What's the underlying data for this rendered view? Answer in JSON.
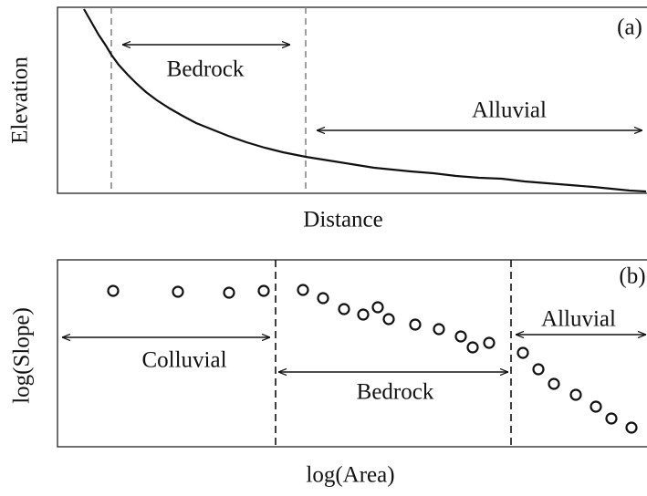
{
  "panel_a": {
    "label": "(a)",
    "y_axis": "Elevation",
    "x_axis": "Distance",
    "zones": [
      "Bedrock",
      "Alluvial"
    ]
  },
  "panel_b": {
    "label": "(b)",
    "y_axis": "log(Slope)",
    "x_axis": "log(Area)",
    "zones": [
      "Colluvial",
      "Bedrock",
      "Alluvial"
    ]
  }
}
